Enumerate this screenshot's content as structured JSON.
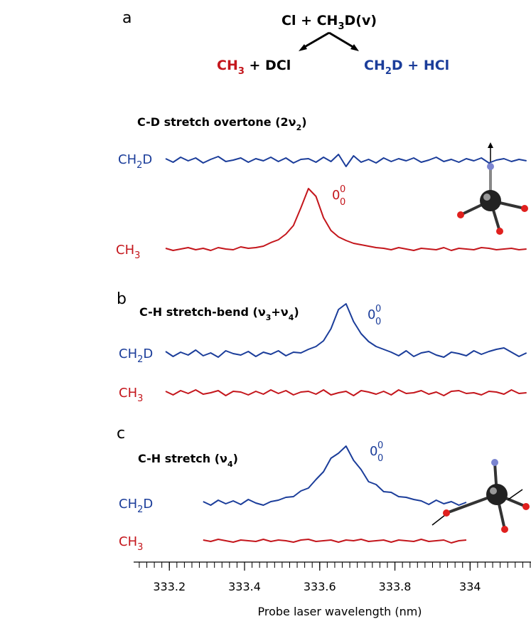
{
  "scheme": {
    "reactant": [
      "Cl  + CH",
      "3",
      "D(v)"
    ],
    "product_left": [
      "CH",
      "3",
      " + DCl"
    ],
    "product_right": [
      "CH",
      "2",
      "D + HCl"
    ]
  },
  "chart_data": [
    {
      "type": "line",
      "panel": "a",
      "title": [
        "C-D stretch overtone (2ν",
        "2",
        ")"
      ],
      "peak_label": {
        "main": "0",
        "sup": "0",
        "sub": "0"
      },
      "x": [
        333.19,
        333.21,
        333.23,
        333.25,
        333.27,
        333.29,
        333.31,
        333.33,
        333.35,
        333.37,
        333.39,
        333.41,
        333.43,
        333.45,
        333.47,
        333.49,
        333.51,
        333.53,
        333.55,
        333.57,
        333.59,
        333.61,
        333.63,
        333.65,
        333.67,
        333.69,
        333.71,
        333.73,
        333.75,
        333.77,
        333.79,
        333.81,
        333.83,
        333.85,
        333.87,
        333.89,
        333.91,
        333.93,
        333.95,
        333.97,
        333.99,
        334.01,
        334.03,
        334.05,
        334.07,
        334.09,
        334.11,
        334.13,
        334.15
      ],
      "series": [
        {
          "name": [
            "CH",
            "2",
            "D"
          ],
          "color": "#1b3d9a",
          "values": [
            2,
            -3,
            4,
            -1,
            3,
            -4,
            1,
            5,
            -2,
            0,
            3,
            -3,
            2,
            -1,
            4,
            -2,
            3,
            -4,
            1,
            2,
            -3,
            4,
            -2,
            8,
            -9,
            6,
            -3,
            1,
            -4,
            3,
            -2,
            2,
            -1,
            3,
            -3,
            0,
            4,
            -2,
            1,
            -3,
            2,
            -1,
            3,
            -4,
            0,
            2,
            -2,
            1,
            -1
          ]
        },
        {
          "name": [
            "CH",
            "3"
          ],
          "color": "#c4161c",
          "values": [
            1,
            -2,
            0,
            2,
            -1,
            1,
            -2,
            2,
            0,
            -1,
            3,
            1,
            2,
            4,
            9,
            13,
            21,
            33,
            58,
            85,
            74,
            44,
            26,
            17,
            12,
            8,
            6,
            4,
            2,
            1,
            -1,
            2,
            0,
            -2,
            1,
            0,
            -1,
            2,
            -2,
            1,
            0,
            -1,
            2,
            1,
            -1,
            0,
            1,
            -1,
            0
          ]
        }
      ]
    },
    {
      "type": "line",
      "panel": "b",
      "title": [
        "C-H stretch-bend (ν",
        "3",
        "+ν",
        "4",
        ")"
      ],
      "peak_label": {
        "main": "0",
        "sup": "0",
        "sub": "0"
      },
      "x": [
        333.19,
        333.21,
        333.23,
        333.25,
        333.27,
        333.29,
        333.31,
        333.33,
        333.35,
        333.37,
        333.39,
        333.41,
        333.43,
        333.45,
        333.47,
        333.49,
        333.51,
        333.53,
        333.55,
        333.57,
        333.59,
        333.61,
        333.63,
        333.65,
        333.67,
        333.69,
        333.71,
        333.73,
        333.75,
        333.77,
        333.79,
        333.81,
        333.83,
        333.85,
        333.87,
        333.89,
        333.91,
        333.93,
        333.95,
        333.97,
        333.99,
        334.01,
        334.03,
        334.05,
        334.07,
        334.09,
        334.11,
        334.13,
        334.15
      ],
      "series": [
        {
          "name": [
            "CH",
            "2",
            "D"
          ],
          "color": "#1b3d9a",
          "values": [
            3,
            -4,
            2,
            -2,
            5,
            -3,
            1,
            -5,
            4,
            0,
            -2,
            3,
            -4,
            2,
            -1,
            4,
            -3,
            2,
            1,
            6,
            10,
            18,
            35,
            62,
            70,
            45,
            28,
            17,
            10,
            6,
            2,
            -3,
            4,
            -4,
            1,
            3,
            -2,
            -5,
            2,
            0,
            -3,
            4,
            -1,
            3,
            6,
            8,
            2,
            -4,
            1
          ]
        },
        {
          "name": [
            "CH",
            "3"
          ],
          "color": "#c4161c",
          "values": [
            2,
            -3,
            3,
            -1,
            4,
            -2,
            0,
            3,
            -4,
            2,
            1,
            -3,
            2,
            -2,
            4,
            -1,
            3,
            -3,
            1,
            2,
            -2,
            4,
            -3,
            0,
            2,
            -4,
            3,
            1,
            -2,
            2,
            -3,
            4,
            -1,
            0,
            3,
            -2,
            1,
            -4,
            2,
            3,
            -1,
            0,
            -3,
            2,
            1,
            -2,
            4,
            -1,
            0
          ]
        }
      ]
    },
    {
      "type": "line",
      "panel": "c",
      "title": [
        "C-H stretch (ν",
        "4",
        ")"
      ],
      "peak_label": {
        "main": "0",
        "sup": "0",
        "sub": "0"
      },
      "x": [
        333.29,
        333.31,
        333.33,
        333.35,
        333.37,
        333.39,
        333.41,
        333.43,
        333.45,
        333.47,
        333.49,
        333.51,
        333.53,
        333.55,
        333.57,
        333.59,
        333.61,
        333.63,
        333.65,
        333.67,
        333.69,
        333.71,
        333.73,
        333.75,
        333.77,
        333.79,
        333.81,
        333.83,
        333.85,
        333.87,
        333.89,
        333.91,
        333.93,
        333.95,
        333.97,
        333.99
      ],
      "series": [
        {
          "name": [
            "CH",
            "2",
            "D"
          ],
          "color": "#1b3d9a",
          "values": [
            2,
            -3,
            4,
            -1,
            3,
            -2,
            5,
            0,
            -3,
            2,
            4,
            8,
            9,
            17,
            21,
            33,
            44,
            63,
            70,
            80,
            60,
            47,
            30,
            26,
            16,
            15,
            9,
            8,
            5,
            3,
            -2,
            4,
            -1,
            2,
            -3,
            1
          ]
        },
        {
          "name": [
            "CH",
            "3"
          ],
          "color": "#c4161c",
          "values": [
            1,
            -1,
            2,
            0,
            -2,
            1,
            0,
            -1,
            2,
            -1,
            1,
            0,
            -2,
            1,
            2,
            -1,
            0,
            1,
            -2,
            1,
            0,
            2,
            -1,
            0,
            1,
            -2,
            1,
            0,
            -1,
            2,
            -1,
            0,
            1,
            -3,
            0,
            1
          ]
        }
      ],
      "xlabel": "Probe laser wavelength (nm)",
      "xlim": [
        333.105,
        334.162
      ],
      "xticks": [
        333.2,
        333.4,
        333.6,
        333.8,
        334.0
      ],
      "minor_xticks": [
        333.12,
        333.14,
        333.16,
        333.18,
        333.2,
        333.22,
        333.24,
        333.26,
        333.28,
        333.3,
        333.32,
        333.34,
        333.36,
        333.38,
        333.4,
        333.42,
        333.44,
        333.46,
        333.48,
        333.5,
        333.52,
        333.54,
        333.56,
        333.58,
        333.6,
        333.62,
        333.64,
        333.66,
        333.68,
        333.7,
        333.72,
        333.74,
        333.76,
        333.78,
        333.8,
        333.82,
        333.84,
        333.86,
        333.88,
        333.9,
        333.92,
        333.94,
        333.96,
        333.98,
        334.0,
        334.02,
        334.04,
        334.06,
        334.08,
        334.1,
        334.12,
        334.14,
        334.16
      ]
    }
  ]
}
